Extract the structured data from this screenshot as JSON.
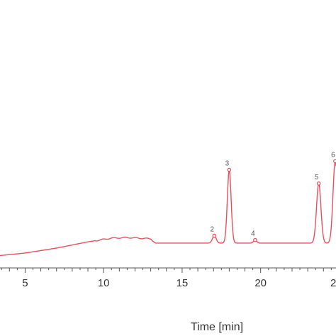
{
  "chart_data": {
    "type": "line",
    "xlabel": "Time [min]",
    "xlim": [
      3.4,
      24.8
    ],
    "ylim": [
      -1.0,
      20.0
    ],
    "x_ticks": [
      5,
      10,
      15,
      20
    ],
    "x_tick_labels": [
      "5",
      "10",
      "15",
      "20"
    ],
    "trailing_tick_label": "2",
    "grid": false,
    "colors": {
      "trace": "#e8505b",
      "axis": "#555555"
    },
    "baseline": [
      [
        3.4,
        0.0
      ],
      [
        5.0,
        0.2
      ],
      [
        7.0,
        0.6
      ],
      [
        9.0,
        1.1
      ],
      [
        10.5,
        1.4
      ],
      [
        11.5,
        1.45
      ],
      [
        13.0,
        1.35
      ],
      [
        13.3,
        1.0
      ],
      [
        15.0,
        1.0
      ],
      [
        16.8,
        1.0
      ],
      [
        18.5,
        1.0
      ],
      [
        20.0,
        1.0
      ],
      [
        22.0,
        1.0
      ],
      [
        23.5,
        1.0
      ],
      [
        24.8,
        1.0
      ]
    ],
    "peaks": [
      {
        "label": "2",
        "x": 17.05,
        "height": 0.6,
        "width": 0.12
      },
      {
        "label": "3",
        "x": 18.0,
        "height": 5.9,
        "width": 0.12
      },
      {
        "label": "4",
        "x": 19.65,
        "height": 0.25,
        "width": 0.1
      },
      {
        "label": "5",
        "x": 23.7,
        "height": 4.8,
        "width": 0.14
      },
      {
        "label": "6",
        "x": 24.75,
        "height": 6.6,
        "width": 0.14
      }
    ]
  }
}
